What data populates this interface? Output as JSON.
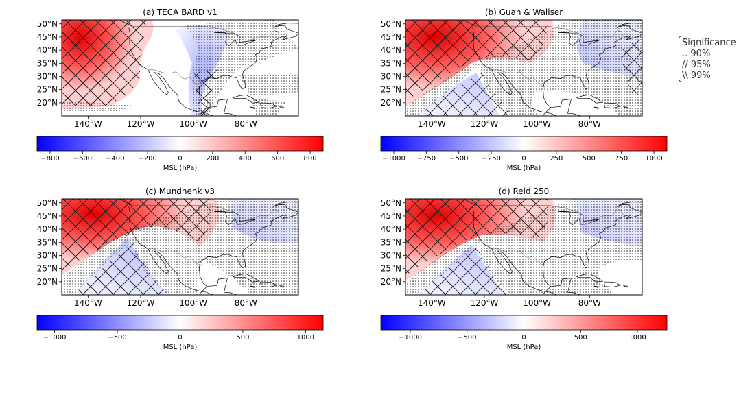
{
  "chart_data": [
    {
      "type": "heatmap",
      "title": "(a) TECA BARD v1",
      "lon_ticks": [
        "140°W",
        "120°W",
        "100°W",
        "80°W"
      ],
      "lat_ticks": [
        "50°N",
        "45°N",
        "40°N",
        "35°N",
        "30°N",
        "25°N",
        "20°N"
      ],
      "colorbar_label": "MSL (hPa)",
      "colorbar_range": [
        -880,
        880
      ],
      "colorbar_ticks": [
        -800,
        -600,
        -400,
        -200,
        0,
        200,
        400,
        600,
        800
      ],
      "colorbar_tick_labels": [
        "−800",
        "−600",
        "−400",
        "−200",
        "0",
        "200",
        "400",
        "600",
        "800"
      ],
      "pattern": "a",
      "colormap": [
        "#0000ff",
        "#ffffff",
        "#ff0000"
      ]
    },
    {
      "type": "heatmap",
      "title": "(b) Guan & Waliser",
      "lon_ticks": [
        "140°W",
        "120°W",
        "100°W",
        "80°W"
      ],
      "lat_ticks": [
        "50°N",
        "45°N",
        "40°N",
        "35°N",
        "30°N",
        "25°N",
        "20°N"
      ],
      "colorbar_label": "MSL (hPa)",
      "colorbar_range": [
        -1100,
        1100
      ],
      "colorbar_ticks": [
        -1000,
        -750,
        -500,
        -250,
        0,
        250,
        500,
        750,
        1000
      ],
      "colorbar_tick_labels": [
        "−1000",
        "−750",
        "−500",
        "−250",
        "0",
        "250",
        "500",
        "750",
        "1000"
      ],
      "pattern": "b",
      "colormap": [
        "#0000ff",
        "#ffffff",
        "#ff0000"
      ]
    },
    {
      "type": "heatmap",
      "title": "(c) Mundhenk v3",
      "lon_ticks": [
        "140°W",
        "120°W",
        "100°W",
        "80°W"
      ],
      "lat_ticks": [
        "50°N",
        "45°N",
        "40°N",
        "35°N",
        "30°N",
        "25°N",
        "20°N"
      ],
      "colorbar_label": "MSL (hPa)",
      "colorbar_range": [
        -1140,
        1140
      ],
      "colorbar_ticks": [
        -1000,
        -500,
        0,
        500,
        1000
      ],
      "colorbar_tick_labels": [
        "−1000",
        "−500",
        "0",
        "500",
        "1000"
      ],
      "pattern": "c",
      "colormap": [
        "#0000ff",
        "#ffffff",
        "#ff0000"
      ]
    },
    {
      "type": "heatmap",
      "title": "(d) Reid 250",
      "lon_ticks": [
        "140°W",
        "120°W",
        "100°W",
        "80°W"
      ],
      "lat_ticks": [
        "50°N",
        "45°N",
        "40°N",
        "35°N",
        "30°N",
        "25°N",
        "20°N"
      ],
      "colorbar_label": "MSL (hPa)",
      "colorbar_range": [
        -1260,
        1260
      ],
      "colorbar_ticks": [
        -1000,
        -500,
        0,
        500,
        1000
      ],
      "colorbar_tick_labels": [
        "−1000",
        "−500",
        "0",
        "500",
        "1000"
      ],
      "pattern": "d",
      "colormap": [
        "#0000ff",
        "#ffffff",
        "#ff0000"
      ]
    }
  ],
  "legend": {
    "title": "Significance",
    "items": [
      ".. 90%",
      "// 95%",
      "\\\\ 99%"
    ]
  }
}
